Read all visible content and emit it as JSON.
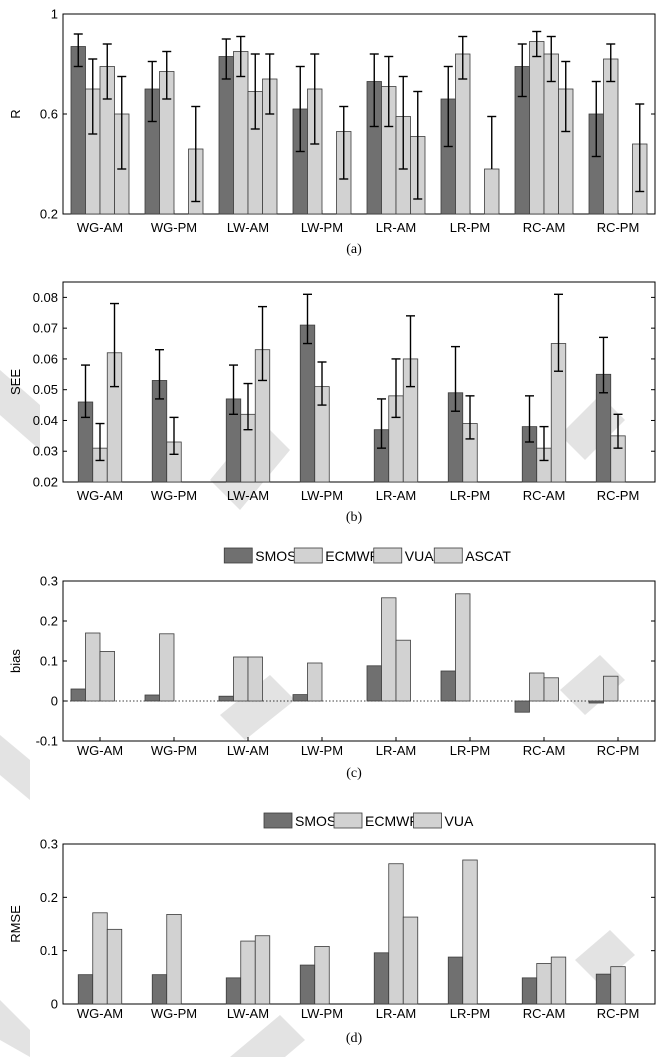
{
  "colors": {
    "smos": "#707070",
    "ecmwf": "#d2d2d2",
    "vua": "#d2d2d2",
    "ascat": "#d2d2d2",
    "axis": "#000000",
    "watermark": "#e3e3e3"
  },
  "chart_data": [
    {
      "panel_label": "(a)",
      "type": "bar",
      "title": "",
      "xlabel": "",
      "ylabel": "R",
      "ylim": [
        0.2,
        1
      ],
      "yticks": [
        "0.2",
        "0.6",
        "1"
      ],
      "categories": [
        "WG-AM",
        "WG-PM",
        "LW-AM",
        "LW-PM",
        "LR-AM",
        "LR-PM",
        "RC-AM",
        "RC-PM"
      ],
      "series": [
        {
          "values": [
            0.87,
            0.7,
            0.83,
            0.62,
            0.73,
            0.66,
            0.79,
            0.6
          ],
          "err_low": [
            0.79,
            0.57,
            0.74,
            0.45,
            0.55,
            0.47,
            0.67,
            0.43
          ],
          "err_high": [
            0.92,
            0.81,
            0.9,
            0.79,
            0.84,
            0.79,
            0.88,
            0.73
          ]
        },
        {
          "values": [
            0.7,
            0.77,
            0.85,
            0.7,
            0.71,
            0.84,
            0.89,
            0.82
          ],
          "err_low": [
            0.52,
            0.66,
            0.75,
            0.48,
            0.55,
            0.74,
            0.83,
            0.73
          ],
          "err_high": [
            0.82,
            0.85,
            0.91,
            0.84,
            0.83,
            0.91,
            0.93,
            0.88
          ]
        },
        {
          "values": [
            0.79,
            null,
            0.69,
            null,
            0.59,
            null,
            0.84,
            null
          ],
          "err_low": [
            0.66,
            null,
            0.54,
            null,
            0.38,
            null,
            0.73,
            null
          ],
          "err_high": [
            0.88,
            null,
            0.84,
            null,
            0.75,
            null,
            0.91,
            null
          ]
        },
        {
          "values": [
            0.6,
            0.46,
            0.74,
            0.53,
            0.51,
            0.38,
            0.7,
            0.48
          ],
          "err_low": [
            0.38,
            0.25,
            0.6,
            0.34,
            0.26,
            null,
            0.53,
            0.29
          ],
          "err_high": [
            0.75,
            0.63,
            0.84,
            0.63,
            0.69,
            0.59,
            0.81,
            0.64
          ]
        }
      ]
    },
    {
      "panel_label": "(b)",
      "type": "bar",
      "title": "",
      "xlabel": "",
      "ylabel": "SEE",
      "ylim": [
        0.02,
        0.085
      ],
      "yticks": [
        "0.02",
        "0.03",
        "0.04",
        "0.05",
        "0.06",
        "0.07",
        "0.08"
      ],
      "categories": [
        "WG-AM",
        "WG-PM",
        "LW-AM",
        "LW-PM",
        "LR-AM",
        "LR-PM",
        "RC-AM",
        "RC-PM"
      ],
      "series": [
        {
          "values": [
            0.046,
            0.053,
            0.047,
            0.071,
            0.037,
            0.049,
            0.038,
            0.055
          ],
          "err_low": [
            0.041,
            0.047,
            0.042,
            0.065,
            0.031,
            0.043,
            0.033,
            0.049
          ],
          "err_high": [
            0.058,
            0.063,
            0.058,
            0.081,
            0.047,
            0.064,
            0.048,
            0.067
          ]
        },
        {
          "values": [
            0.031,
            0.033,
            0.042,
            0.051,
            0.048,
            0.039,
            0.031,
            0.035
          ],
          "err_low": [
            0.027,
            0.029,
            0.037,
            0.045,
            0.041,
            0.034,
            0.027,
            0.031
          ],
          "err_high": [
            0.039,
            0.041,
            0.052,
            0.059,
            0.06,
            0.048,
            0.038,
            0.042
          ]
        },
        {
          "values": [
            0.062,
            null,
            0.063,
            null,
            0.06,
            null,
            0.065,
            null
          ],
          "err_low": [
            0.051,
            null,
            0.053,
            null,
            0.051,
            null,
            0.056,
            null
          ],
          "err_high": [
            0.078,
            null,
            0.077,
            null,
            0.074,
            null,
            0.081,
            null
          ]
        }
      ]
    },
    {
      "panel_label": "(c)",
      "type": "bar",
      "title": "",
      "xlabel": "",
      "ylabel": "bias",
      "ylim": [
        -0.1,
        0.3
      ],
      "yticks": [
        "-0.1",
        "0",
        "0.1",
        "0.2",
        "0.3"
      ],
      "zero_line": true,
      "legend_position": "top",
      "categories": [
        "WG-AM",
        "WG-PM",
        "LW-AM",
        "LW-PM",
        "LR-AM",
        "LR-PM",
        "RC-AM",
        "RC-PM"
      ],
      "series": [
        {
          "name": "SMOS",
          "values": [
            0.03,
            0.015,
            0.012,
            0.016,
            0.088,
            0.075,
            -0.028,
            -0.005
          ]
        },
        {
          "name": "ECMWF",
          "values": [
            0.17,
            0.168,
            0.11,
            0.095,
            0.258,
            0.268,
            0.07,
            0.062
          ]
        },
        {
          "name": "VUA",
          "values": [
            0.124,
            null,
            0.11,
            null,
            0.152,
            null,
            0.058,
            null
          ]
        },
        {
          "name": "ASCAT",
          "values": [
            null,
            null,
            null,
            null,
            null,
            null,
            null,
            null
          ]
        }
      ]
    },
    {
      "panel_label": "(d)",
      "type": "bar",
      "title": "",
      "xlabel": "",
      "ylabel": "RMSE",
      "ylim": [
        0,
        0.3
      ],
      "yticks": [
        "0",
        "0.1",
        "0.2",
        "0.3"
      ],
      "legend_position": "top",
      "categories": [
        "WG-AM",
        "WG-PM",
        "LW-AM",
        "LW-PM",
        "LR-AM",
        "LR-PM",
        "RC-AM",
        "RC-PM"
      ],
      "series": [
        {
          "name": "SMOS",
          "values": [
            0.055,
            0.055,
            0.049,
            0.073,
            0.096,
            0.088,
            0.049,
            0.056
          ]
        },
        {
          "name": "ECMWF",
          "values": [
            0.171,
            0.168,
            0.118,
            0.108,
            0.263,
            0.27,
            0.076,
            0.07
          ]
        },
        {
          "name": "VUA",
          "values": [
            0.14,
            null,
            0.128,
            null,
            0.163,
            null,
            0.088,
            null
          ]
        }
      ]
    }
  ]
}
